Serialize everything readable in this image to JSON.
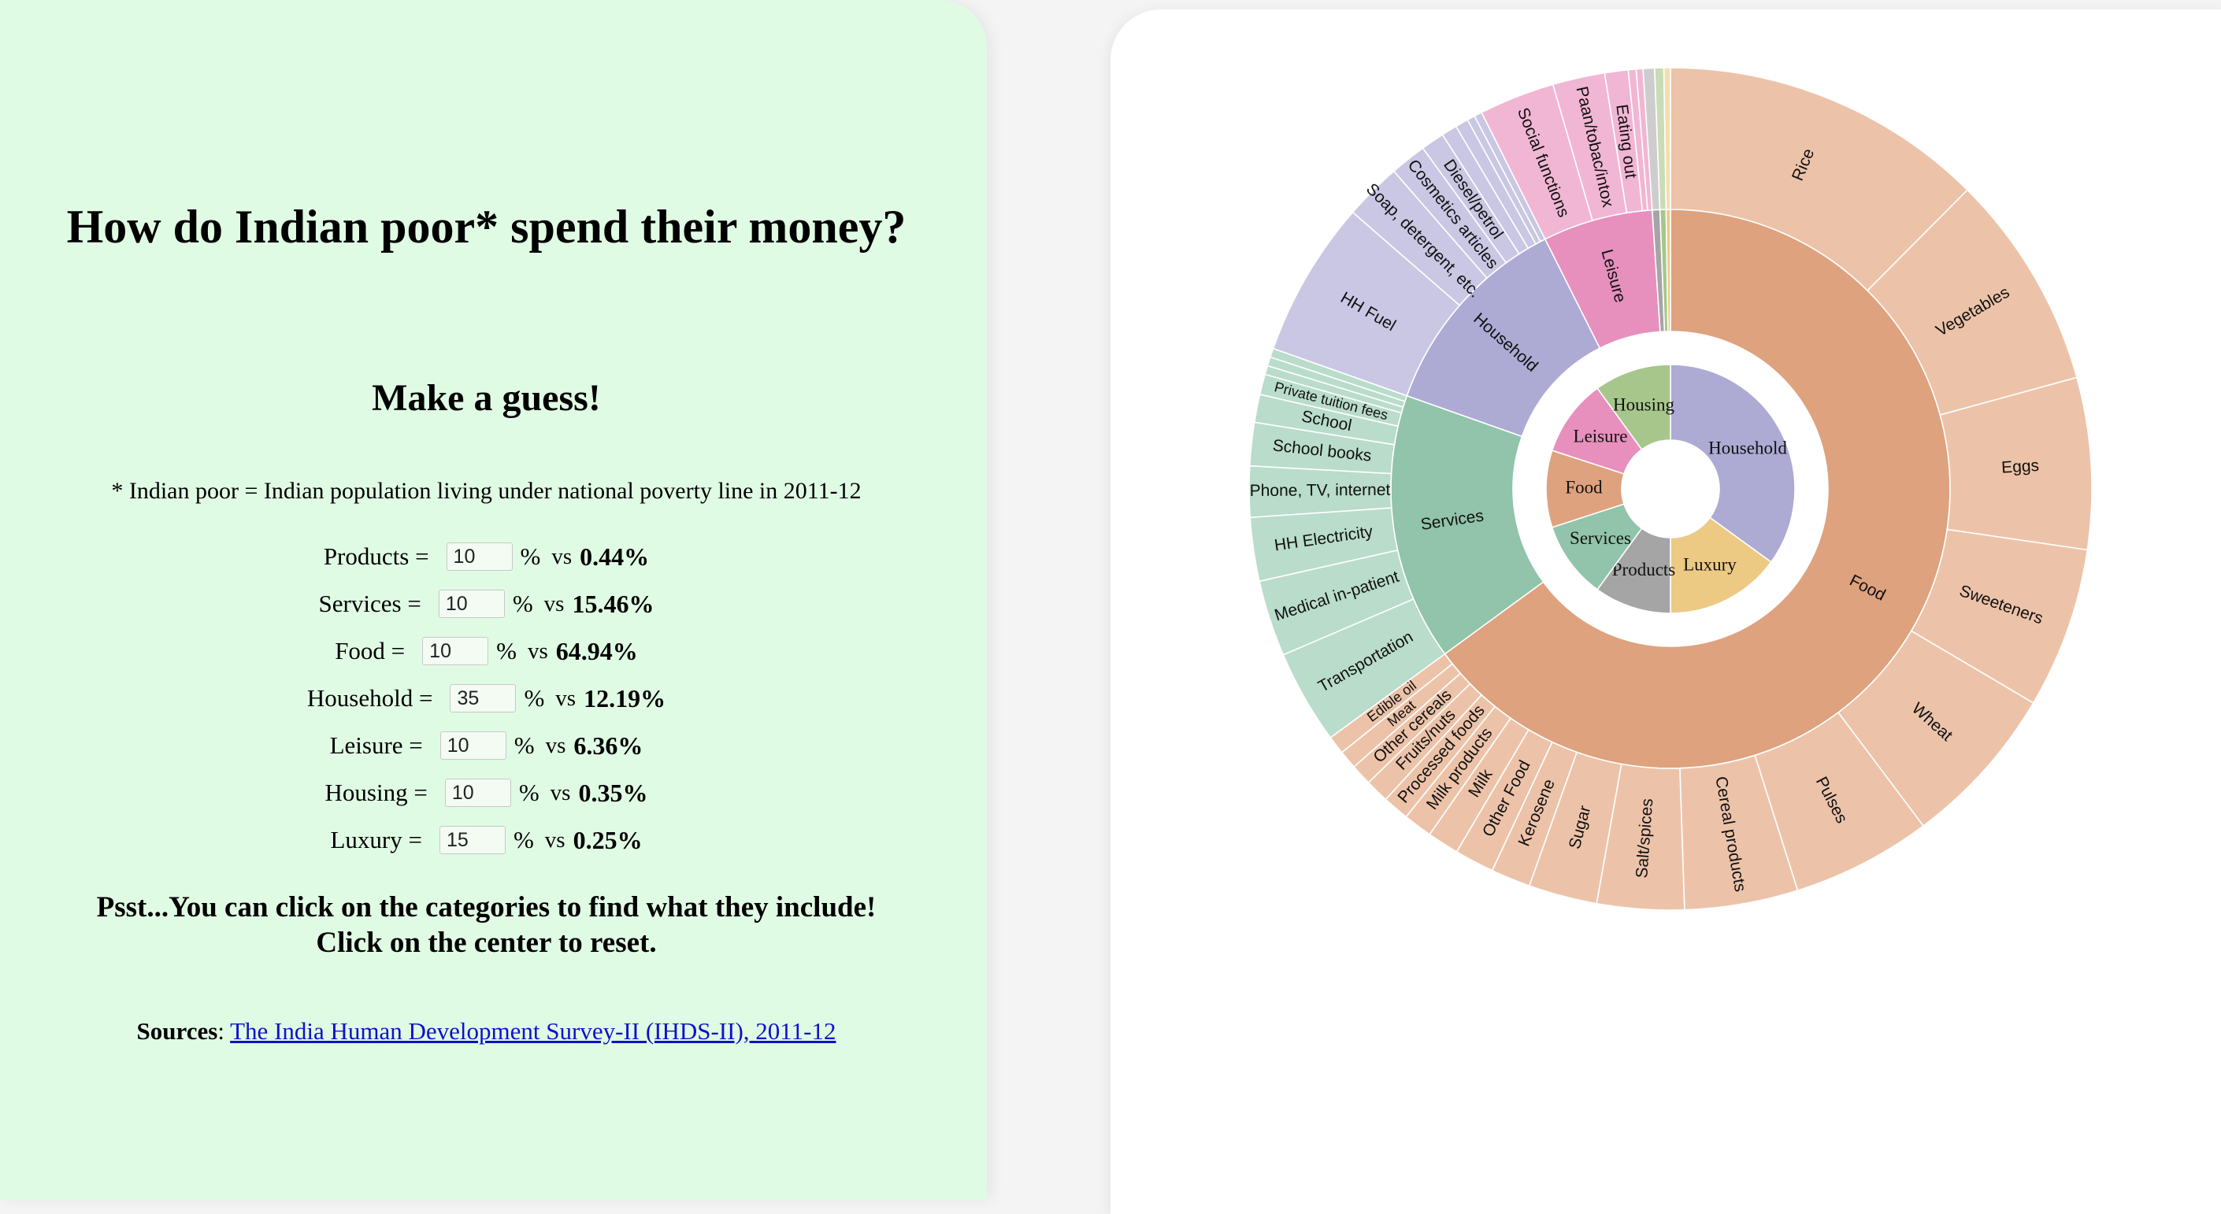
{
  "title": "How do Indian poor* spend their money?",
  "subtitle": "Make a guess!",
  "note": "* Indian poor = Indian population living under national poverty line in 2011-12",
  "guesses": [
    {
      "label": "Products =",
      "value": "10",
      "percent": "%",
      "vs": "vs",
      "actual": "0.44%"
    },
    {
      "label": "Services =",
      "value": "10",
      "percent": "%",
      "vs": "vs",
      "actual": "15.46%"
    },
    {
      "label": "Food =",
      "value": "10",
      "percent": "%",
      "vs": "vs",
      "actual": "64.94%"
    },
    {
      "label": "Household =",
      "value": "35",
      "percent": "%",
      "vs": "vs",
      "actual": "12.19%"
    },
    {
      "label": "Leisure =",
      "value": "10",
      "percent": "%",
      "vs": "vs",
      "actual": "6.36%"
    },
    {
      "label": "Housing =",
      "value": "10",
      "percent": "%",
      "vs": "vs",
      "actual": "0.35%"
    },
    {
      "label": "Luxury =",
      "value": "15",
      "percent": "%",
      "vs": "vs",
      "actual": "0.25%"
    }
  ],
  "hint_line1": "Psst...You can click on the categories to find what they include!",
  "hint_line2": "Click on the center to reset.",
  "sources_label": "Sources",
  "sources_link": "The India Human Development Survey-II (IHDS-II), 2011-12",
  "chart_data": {
    "type": "sunburst",
    "ring_inner_guess": [
      {
        "name": "Household",
        "value": 35,
        "color": "#adaad4"
      },
      {
        "name": "Luxury",
        "value": 15,
        "color": "#ecca84"
      },
      {
        "name": "Products",
        "value": 10,
        "color": "#a5a5a5"
      },
      {
        "name": "Services",
        "value": 10,
        "color": "#91c4aa"
      },
      {
        "name": "Food",
        "value": 10,
        "color": "#dea27e"
      },
      {
        "name": "Leisure",
        "value": 10,
        "color": "#e78fbd"
      },
      {
        "name": "Housing",
        "value": 10,
        "color": "#a7c68c"
      }
    ],
    "categories": [
      {
        "name": "Food",
        "value": 64.94,
        "color": "#dea27e",
        "sub_color": "#ecc3a9",
        "subs": [
          {
            "name": "Rice",
            "value": 12.3
          },
          {
            "name": "Vegetables",
            "value": 8.2
          },
          {
            "name": "Eggs",
            "value": 6.5
          },
          {
            "name": "Sweeteners",
            "value": 6.1
          },
          {
            "name": "Wheat",
            "value": 6.2
          },
          {
            "name": "Pulses",
            "value": 5.3
          },
          {
            "name": "Cereal products",
            "value": 4.3
          },
          {
            "name": "Salt/spices",
            "value": 3.3
          },
          {
            "name": "Sugar",
            "value": 2.6
          },
          {
            "name": "Kerosene",
            "value": 1.5
          },
          {
            "name": "Other Food",
            "value": 1.5
          },
          {
            "name": "Milk",
            "value": 1.2
          },
          {
            "name": "Milk products",
            "value": 1.1
          },
          {
            "name": "Processed foods",
            "value": 1.0
          },
          {
            "name": "Fruits/nuts",
            "value": 0.9
          },
          {
            "name": "Other cereals",
            "value": 0.8
          },
          {
            "name": "Meat",
            "value": 0.7
          },
          {
            "name": "Edible oil",
            "value": 0.7
          }
        ]
      },
      {
        "name": "Services",
        "value": 15.46,
        "color": "#91c4aa",
        "sub_color": "#b9dccb",
        "subs": [
          {
            "name": "Transportation",
            "value": 3.7
          },
          {
            "name": "Medical in-patient",
            "value": 3.0
          },
          {
            "name": "HH Electricity",
            "value": 2.5
          },
          {
            "name": "Phone, TV, internet",
            "value": 2.0
          },
          {
            "name": "School books",
            "value": 1.7
          },
          {
            "name": "School",
            "value": 1.1
          },
          {
            "name": "Private tuition fees",
            "value": 0.8
          },
          {
            "name": "",
            "value": 0.35
          },
          {
            "name": "",
            "value": 0.35
          },
          {
            "name": "",
            "value": 0.35
          }
        ]
      },
      {
        "name": "Household",
        "value": 12.19,
        "color": "#adaad4",
        "sub_color": "#c9c7e3",
        "subs": [
          {
            "name": "HH Fuel",
            "value": 6.0
          },
          {
            "name": "Soap, detergent, etc.",
            "value": 2.2
          },
          {
            "name": "Cosmetics articles",
            "value": 1.4
          },
          {
            "name": "Diesel/petrol",
            "value": 0.9
          },
          {
            "name": "",
            "value": 0.6
          },
          {
            "name": "",
            "value": 0.5
          },
          {
            "name": "",
            "value": 0.3
          },
          {
            "name": "",
            "value": 0.3
          }
        ]
      },
      {
        "name": "Leisure",
        "value": 6.36,
        "color": "#e78fbd",
        "sub_color": "#f1b6d4",
        "subs": [
          {
            "name": "Social functions",
            "value": 2.9
          },
          {
            "name": "Paan/tobac/intox",
            "value": 2.0
          },
          {
            "name": "Eating out",
            "value": 0.9
          },
          {
            "name": "",
            "value": 0.3
          },
          {
            "name": "",
            "value": 0.26
          }
        ]
      },
      {
        "name": "Products",
        "value": 0.44,
        "color": "#a5a5a5",
        "sub_color": "#cdcdcd",
        "subs": [
          {
            "name": "",
            "value": 0.44
          }
        ]
      },
      {
        "name": "Housing",
        "value": 0.35,
        "color": "#a7c68c",
        "sub_color": "#c9dcb6",
        "subs": [
          {
            "name": "",
            "value": 0.35
          }
        ]
      },
      {
        "name": "Luxury",
        "value": 0.25,
        "color": "#ecca84",
        "sub_color": "#f3dfae",
        "subs": [
          {
            "name": "",
            "value": 0.25
          }
        ]
      }
    ]
  }
}
